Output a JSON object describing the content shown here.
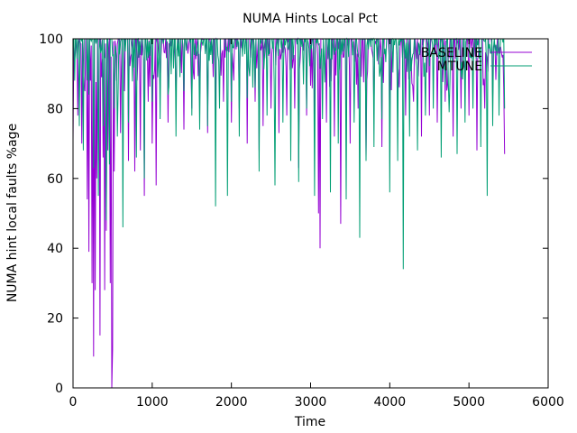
{
  "chart_data": {
    "type": "line",
    "title": "NUMA Hints Local Pct",
    "xlabel": "Time",
    "ylabel": "NUMA hint local faults %age",
    "xlim": [
      0,
      6000
    ],
    "ylim": [
      0,
      100
    ],
    "xticks": [
      0,
      1000,
      2000,
      3000,
      4000,
      5000,
      6000
    ],
    "yticks": [
      0,
      20,
      40,
      60,
      80,
      100
    ],
    "grid": false,
    "legend_position": "top-right",
    "series": [
      {
        "name": "BASELINE",
        "color": "#9400d3",
        "x_start": 0,
        "x_end": 5450,
        "typical_low": 85,
        "typical_high": 100,
        "dips": [
          [
            0,
            71
          ],
          [
            60,
            78
          ],
          [
            110,
            70
          ],
          [
            150,
            85
          ],
          [
            180,
            54
          ],
          [
            200,
            39
          ],
          [
            220,
            88
          ],
          [
            240,
            30
          ],
          [
            255,
            9
          ],
          [
            280,
            28
          ],
          [
            300,
            60
          ],
          [
            320,
            65
          ],
          [
            340,
            15
          ],
          [
            360,
            89
          ],
          [
            380,
            66
          ],
          [
            400,
            28
          ],
          [
            420,
            45
          ],
          [
            440,
            68
          ],
          [
            470,
            30
          ],
          [
            490,
            0
          ],
          [
            500,
            11
          ],
          [
            520,
            62
          ],
          [
            550,
            88
          ],
          [
            600,
            73
          ],
          [
            650,
            85
          ],
          [
            700,
            65
          ],
          [
            780,
            62
          ],
          [
            850,
            68
          ],
          [
            900,
            55
          ],
          [
            950,
            82
          ],
          [
            1000,
            70
          ],
          [
            1050,
            58
          ],
          [
            1100,
            86
          ],
          [
            1200,
            76
          ],
          [
            1300,
            82
          ],
          [
            1400,
            74
          ],
          [
            1500,
            80
          ],
          [
            1600,
            83
          ],
          [
            1700,
            73
          ],
          [
            1800,
            76
          ],
          [
            1900,
            82
          ],
          [
            2000,
            76
          ],
          [
            2100,
            80
          ],
          [
            2200,
            70
          ],
          [
            2300,
            82
          ],
          [
            2350,
            68
          ],
          [
            2400,
            75
          ],
          [
            2500,
            80
          ],
          [
            2600,
            73
          ],
          [
            2700,
            78
          ],
          [
            2800,
            80
          ],
          [
            2850,
            63
          ],
          [
            2950,
            78
          ],
          [
            3050,
            75
          ],
          [
            3100,
            50
          ],
          [
            3120,
            40
          ],
          [
            3200,
            76
          ],
          [
            3300,
            72
          ],
          [
            3380,
            47
          ],
          [
            3450,
            75
          ],
          [
            3500,
            70
          ],
          [
            3600,
            80
          ],
          [
            3700,
            66
          ],
          [
            3800,
            78
          ],
          [
            3900,
            69
          ],
          [
            4000,
            73
          ],
          [
            4100,
            80
          ],
          [
            4200,
            78
          ],
          [
            4300,
            82
          ],
          [
            4400,
            72
          ],
          [
            4500,
            78
          ],
          [
            4600,
            76
          ],
          [
            4700,
            82
          ],
          [
            4800,
            72
          ],
          [
            4900,
            80
          ],
          [
            5000,
            78
          ],
          [
            5100,
            68
          ],
          [
            5200,
            80
          ],
          [
            5300,
            83
          ],
          [
            5450,
            67
          ]
        ]
      },
      {
        "name": "MTUNE",
        "color": "#009e73",
        "x_start": 0,
        "x_end": 5450,
        "typical_low": 86,
        "typical_high": 100,
        "dips": [
          [
            20,
            88
          ],
          [
            80,
            75
          ],
          [
            130,
            68
          ],
          [
            200,
            84
          ],
          [
            260,
            63
          ],
          [
            320,
            55
          ],
          [
            380,
            75
          ],
          [
            420,
            48
          ],
          [
            460,
            64
          ],
          [
            520,
            80
          ],
          [
            560,
            72
          ],
          [
            630,
            46
          ],
          [
            700,
            76
          ],
          [
            800,
            66
          ],
          [
            900,
            60
          ],
          [
            1000,
            82
          ],
          [
            1100,
            77
          ],
          [
            1200,
            84
          ],
          [
            1300,
            72
          ],
          [
            1400,
            85
          ],
          [
            1500,
            78
          ],
          [
            1600,
            74
          ],
          [
            1700,
            75
          ],
          [
            1800,
            52
          ],
          [
            1850,
            80
          ],
          [
            1950,
            55
          ],
          [
            2000,
            82
          ],
          [
            2100,
            72
          ],
          [
            2200,
            83
          ],
          [
            2300,
            86
          ],
          [
            2350,
            62
          ],
          [
            2450,
            78
          ],
          [
            2550,
            58
          ],
          [
            2650,
            76
          ],
          [
            2750,
            65
          ],
          [
            2850,
            59
          ],
          [
            2950,
            80
          ],
          [
            3050,
            55
          ],
          [
            3150,
            77
          ],
          [
            3250,
            56
          ],
          [
            3350,
            70
          ],
          [
            3450,
            54
          ],
          [
            3550,
            76
          ],
          [
            3620,
            43
          ],
          [
            3700,
            65
          ],
          [
            3800,
            69
          ],
          [
            3900,
            77
          ],
          [
            4000,
            56
          ],
          [
            4100,
            65
          ],
          [
            4170,
            34
          ],
          [
            4250,
            72
          ],
          [
            4350,
            68
          ],
          [
            4450,
            78
          ],
          [
            4550,
            80
          ],
          [
            4650,
            66
          ],
          [
            4750,
            79
          ],
          [
            4850,
            67
          ],
          [
            4950,
            76
          ],
          [
            5050,
            80
          ],
          [
            5150,
            69
          ],
          [
            5230,
            55
          ],
          [
            5300,
            75
          ],
          [
            5380,
            78
          ],
          [
            5450,
            80
          ]
        ]
      }
    ]
  }
}
